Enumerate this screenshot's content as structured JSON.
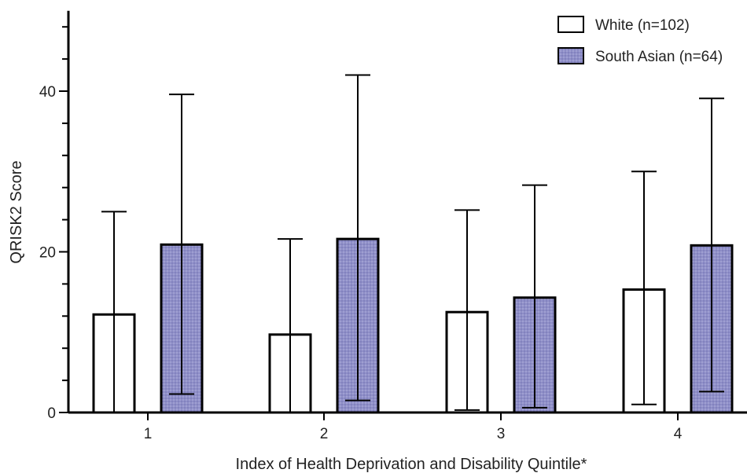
{
  "chart_data": {
    "type": "bar",
    "xlabel": "Index of Health Deprivation and Disability Quintile*",
    "ylabel": "QRISK2 Score",
    "ylim": [
      0,
      50
    ],
    "yticks": [
      0,
      20,
      40
    ],
    "categories": [
      "1",
      "2",
      "3",
      "4"
    ],
    "series": [
      {
        "name": "White (n=102)",
        "fill": "#ffffff",
        "values": [
          12.2,
          9.7,
          12.5,
          15.3
        ],
        "error_low": [
          0,
          0,
          0.3,
          1.0
        ],
        "error_high": [
          25.0,
          21.6,
          25.2,
          30.0
        ]
      },
      {
        "name": "South Asian (n=64)",
        "fill": "#8f8fc8",
        "values": [
          20.9,
          21.6,
          14.3,
          20.8
        ],
        "error_low": [
          2.3,
          1.5,
          0.6,
          2.6
        ],
        "error_high": [
          39.6,
          42.0,
          28.3,
          39.1
        ]
      }
    ],
    "grid": false,
    "legend": "top-right"
  }
}
